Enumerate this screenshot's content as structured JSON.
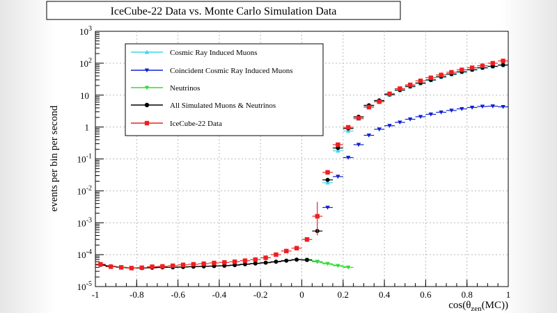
{
  "chart_data": {
    "type": "scatter",
    "title": "IceCube-22 Data vs. Monte Carlo Simulation Data",
    "xlabel": "cos(θzen(MC))",
    "xlabel_parts": {
      "prefix": "cos(",
      "theta": "θ",
      "sub": "zen",
      "suffix": "(MC))"
    },
    "ylabel": "events per bin per second",
    "xlim": [
      -1,
      1
    ],
    "ylim": [
      1e-05,
      1000
    ],
    "yscale": "log",
    "grid": true,
    "legend_position": "top-left",
    "x_ticks": [
      "-1",
      "-0.8",
      "-0.6",
      "-0.4",
      "-0.2",
      "0",
      "0.2",
      "0.4",
      "0.6",
      "0.8",
      "1"
    ],
    "y_ticks": [
      {
        "base": "10",
        "exp": "-5"
      },
      {
        "base": "10",
        "exp": "-4"
      },
      {
        "base": "10",
        "exp": "-3"
      },
      {
        "base": "10",
        "exp": "-2"
      },
      {
        "base": "10",
        "exp": "-1"
      },
      {
        "base": "1",
        "exp": ""
      },
      {
        "base": "10",
        "exp": ""
      },
      {
        "base": "10",
        "exp": "2"
      },
      {
        "base": "10",
        "exp": "3"
      }
    ],
    "series": [
      {
        "name": "Cosmic Ray Induced Muons",
        "color": "#3fd6e6",
        "marker": "triangle-up",
        "x": [
          0.125,
          0.175,
          0.225,
          0.275,
          0.325,
          0.375,
          0.425,
          0.475,
          0.525,
          0.575,
          0.625,
          0.675,
          0.725,
          0.775,
          0.825,
          0.875,
          0.925,
          0.975
        ],
        "y": [
          0.018,
          0.18,
          0.75,
          1.8,
          4.5,
          6.5,
          10,
          14,
          18,
          23,
          29,
          36,
          44,
          52,
          61,
          70,
          78,
          85
        ]
      },
      {
        "name": "Coincident Cosmic Ray Induced Muons",
        "color": "#1020d0",
        "marker": "triangle-down",
        "x": [
          0.075,
          0.125,
          0.175,
          0.225,
          0.275,
          0.325,
          0.375,
          0.425,
          0.475,
          0.525,
          0.575,
          0.625,
          0.675,
          0.725,
          0.775,
          0.825,
          0.875,
          0.925,
          0.975
        ],
        "y": [
          6e-05,
          0.003,
          0.028,
          0.11,
          0.28,
          0.55,
          0.85,
          1.1,
          1.4,
          1.75,
          2.1,
          2.5,
          2.9,
          3.3,
          3.7,
          4.1,
          4.4,
          4.5,
          4.3
        ]
      },
      {
        "name": "Neutrinos",
        "color": "#33dd33",
        "marker": "triangle-down",
        "x": [
          0.025,
          0.075,
          0.125,
          0.175,
          0.225
        ],
        "y": [
          7e-05,
          6e-05,
          5.2e-05,
          4.5e-05,
          4e-05
        ]
      },
      {
        "name": "All Simulated Muons & Neutrinos",
        "color": "#000000",
        "marker": "circle",
        "x": [
          -0.975,
          -0.925,
          -0.875,
          -0.825,
          -0.775,
          -0.725,
          -0.675,
          -0.625,
          -0.575,
          -0.525,
          -0.475,
          -0.425,
          -0.375,
          -0.325,
          -0.275,
          -0.225,
          -0.175,
          -0.125,
          -0.075,
          -0.025,
          0.025,
          0.075,
          0.125,
          0.175,
          0.225,
          0.275,
          0.325,
          0.375,
          0.425,
          0.475,
          0.525,
          0.575,
          0.625,
          0.675,
          0.725,
          0.775,
          0.825,
          0.875,
          0.925,
          0.975
        ],
        "y": [
          4.8e-05,
          4.3e-05,
          4e-05,
          3.8e-05,
          3.8e-05,
          3.9e-05,
          4e-05,
          4e-05,
          4.1e-05,
          4.2e-05,
          4.3e-05,
          4.4e-05,
          4.5e-05,
          4.7e-05,
          5e-05,
          5.3e-05,
          5.6e-05,
          6e-05,
          6.5e-05,
          7e-05,
          6.8e-05,
          0.00055,
          0.022,
          0.22,
          0.9,
          2.1,
          4.8,
          6.8,
          10.5,
          14.5,
          19,
          24,
          30,
          38,
          46,
          54,
          63,
          72,
          80,
          88
        ]
      },
      {
        "name": "IceCube-22 Data",
        "color": "#ee2020",
        "marker": "square",
        "x": [
          -0.975,
          -0.925,
          -0.875,
          -0.825,
          -0.775,
          -0.725,
          -0.675,
          -0.625,
          -0.575,
          -0.525,
          -0.475,
          -0.425,
          -0.375,
          -0.325,
          -0.275,
          -0.225,
          -0.175,
          -0.125,
          -0.075,
          -0.025,
          0.025,
          0.075,
          0.125,
          0.175,
          0.225,
          0.275,
          0.325,
          0.375,
          0.425,
          0.475,
          0.525,
          0.575,
          0.625,
          0.675,
          0.725,
          0.775,
          0.825,
          0.875,
          0.925,
          0.975
        ],
        "y": [
          5e-05,
          4.2e-05,
          4e-05,
          3.8e-05,
          3.9e-05,
          4.2e-05,
          4.3e-05,
          4.5e-05,
          4.8e-05,
          5e-05,
          5.2e-05,
          5.5e-05,
          5.7e-05,
          6e-05,
          6.5e-05,
          7e-05,
          8e-05,
          0.0001,
          0.00013,
          0.00016,
          0.0003,
          0.0016,
          0.038,
          0.28,
          0.98,
          1.9,
          4.2,
          6.2,
          11,
          16,
          21,
          28,
          35,
          43,
          52,
          62,
          72,
          83,
          100,
          118
        ],
        "error_low": [
          4.5e-05,
          3.8e-05,
          3.6e-05,
          3.4e-05,
          3.5e-05,
          3.8e-05,
          3.9e-05,
          4.1e-05,
          4.4e-05,
          4.6e-05,
          4.8e-05,
          5e-05,
          5.2e-05,
          5.5e-05,
          6e-05,
          6.4e-05,
          7.2e-05,
          9e-05,
          0.000115,
          0.00014,
          0.00025,
          0.0004,
          0.032,
          0.25,
          0.9,
          1.8,
          4.0,
          6.0,
          10.6,
          15.5,
          20.5,
          27,
          34,
          42,
          51,
          61,
          71,
          82,
          98,
          116
        ],
        "error_high": [
          5.5e-05,
          4.6e-05,
          4.4e-05,
          4.2e-05,
          4.3e-05,
          4.6e-05,
          4.7e-05,
          4.9e-05,
          5.2e-05,
          5.4e-05,
          5.6e-05,
          6e-05,
          6.2e-05,
          6.5e-05,
          7e-05,
          7.6e-05,
          8.8e-05,
          0.00011,
          0.000145,
          0.00018,
          0.00035,
          0.0045,
          0.045,
          0.31,
          1.06,
          2.0,
          4.4,
          6.4,
          11.4,
          16.5,
          21.5,
          29,
          36,
          44,
          53,
          63,
          73,
          84,
          102,
          120
        ]
      }
    ]
  }
}
